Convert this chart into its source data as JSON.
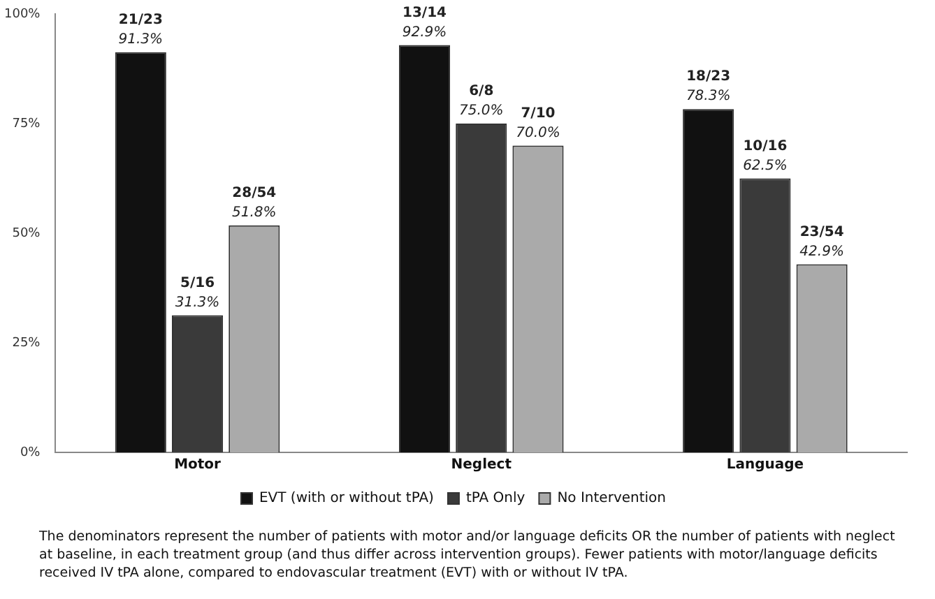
{
  "chart_data": {
    "type": "bar",
    "categories": [
      "Motor",
      "Neglect",
      "Language"
    ],
    "series": [
      {
        "name": "EVT (with or without tPA)",
        "color": "#111111",
        "values": [
          91.3,
          92.9,
          78.3
        ],
        "value_labels": [
          "21/23\n91.3%",
          "13/14\n92.9%",
          "18/23\n78.3%"
        ]
      },
      {
        "name": "tPA Only",
        "color": "#3a3a3a",
        "values": [
          31.3,
          75.0,
          62.5
        ],
        "value_labels": [
          "5/16\n31.3%",
          "6/8\n75.0%",
          "10/16\n62.5%"
        ]
      },
      {
        "name": "No Intervention",
        "color": "#aaaaaa",
        "values": [
          51.8,
          70.0,
          42.9
        ],
        "value_labels": [
          "28/54\n51.8%",
          "7/10\n70.0%",
          "23/54\n42.9%"
        ]
      }
    ],
    "ylim": [
      0,
      100
    ],
    "yticks": [
      {
        "value": 0,
        "label": "0%"
      },
      {
        "value": 25,
        "label": "25%"
      },
      {
        "value": 50,
        "label": "50%"
      },
      {
        "value": 75,
        "label": "75%"
      },
      {
        "value": 100,
        "label": "100%"
      }
    ],
    "grid": false,
    "legend": "bottom",
    "annotations": [
      "The denominators represent the number of patients with motor and/or language deficits OR the number of patients with neglect at baseline, in each treatment group (and thus differ across intervention groups).  Fewer patients with motor/language deficits received IV tPA alone, compared to endovascular treatment (EVT) with or without IV tPA."
    ]
  }
}
